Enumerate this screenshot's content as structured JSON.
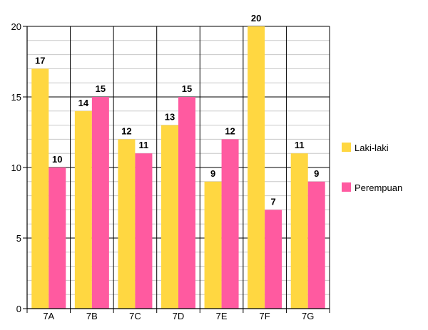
{
  "chart_data": {
    "type": "bar",
    "categories": [
      "7A",
      "7B",
      "7C",
      "7D",
      "7E",
      "7F",
      "7G"
    ],
    "series": [
      {
        "name": "Laki-laki",
        "values": [
          17,
          14,
          12,
          13,
          9,
          20,
          11
        ],
        "color": "#FFD741"
      },
      {
        "name": "Perempuan",
        "values": [
          10,
          15,
          11,
          15,
          12,
          7,
          9
        ],
        "color": "#FF5AA0"
      }
    ],
    "ylim": [
      0,
      20
    ],
    "yticks": [
      0,
      5,
      10,
      15,
      20
    ],
    "minor_grid_step": 1,
    "grid": true,
    "data_labels": true,
    "legend_position": "right"
  }
}
